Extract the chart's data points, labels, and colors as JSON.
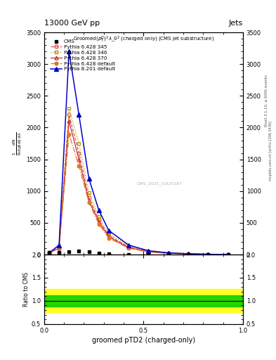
{
  "title_left": "13000 GeV pp",
  "title_right": "Jets",
  "plot_title": "Groomed$(p_{T}^{D})^{2}\\lambda\\_0^{2}$ (charged only) (CMS jet substructure)",
  "xlabel": "groomed pTD2 (charged-only)",
  "watermark": "CMS_2021_I1920187",
  "rivet_label": "Rivet 3.1.10, ≥ 600k events",
  "arxiv_label": "mcplots.cern.ch [arXiv:1306.3436]",
  "cms_x": [
    0.025,
    0.075,
    0.125,
    0.175,
    0.225,
    0.275,
    0.325,
    0.425,
    0.525,
    0.625,
    0.725,
    0.825,
    0.925
  ],
  "cms_y": [
    30,
    35,
    50,
    60,
    40,
    20,
    10,
    5,
    3,
    2,
    1,
    0.5,
    0.2
  ],
  "cms_yerr": [
    4,
    5,
    6,
    7,
    5,
    3,
    2,
    1,
    0.5,
    0.3,
    0.2,
    0.1,
    0.05
  ],
  "p6_345_x": [
    0.025,
    0.075,
    0.125,
    0.175,
    0.225,
    0.275,
    0.325,
    0.425,
    0.525,
    0.625,
    0.725,
    0.825,
    0.925
  ],
  "p6_345_y": [
    30,
    110,
    2200,
    1600,
    900,
    550,
    300,
    120,
    50,
    25,
    12,
    5,
    2
  ],
  "p6_346_x": [
    0.025,
    0.075,
    0.125,
    0.175,
    0.225,
    0.275,
    0.325,
    0.425,
    0.525,
    0.625,
    0.725,
    0.825,
    0.925
  ],
  "p6_346_y": [
    30,
    110,
    2300,
    1750,
    980,
    600,
    330,
    135,
    55,
    27,
    13,
    5.5,
    2.2
  ],
  "p6_370_x": [
    0.025,
    0.075,
    0.125,
    0.175,
    0.225,
    0.275,
    0.325,
    0.425,
    0.525,
    0.625,
    0.725,
    0.825,
    0.925
  ],
  "p6_370_y": [
    25,
    100,
    2100,
    1500,
    850,
    520,
    280,
    110,
    45,
    22,
    11,
    4.5,
    1.8
  ],
  "p6_def_x": [
    0.025,
    0.075,
    0.125,
    0.175,
    0.225,
    0.275,
    0.325,
    0.425,
    0.525,
    0.625,
    0.725,
    0.825,
    0.925
  ],
  "p6_def_y": [
    20,
    100,
    1900,
    1400,
    820,
    480,
    260,
    100,
    40,
    18,
    9,
    3.5,
    1.5
  ],
  "p8_def_x": [
    0.025,
    0.075,
    0.125,
    0.175,
    0.225,
    0.275,
    0.325,
    0.425,
    0.525,
    0.625,
    0.725,
    0.825,
    0.925
  ],
  "p8_def_y": [
    25,
    150,
    3200,
    2200,
    1200,
    700,
    380,
    150,
    60,
    28,
    13,
    5,
    2
  ],
  "colors": {
    "cms": "#000000",
    "p6_345": "#e05555",
    "p6_346": "#b89000",
    "p6_370": "#c83030",
    "p6_def": "#e07820",
    "p8_def": "#0000cc"
  },
  "xlim": [
    0.0,
    1.0
  ],
  "ylim_main": [
    0,
    3500
  ],
  "ylim_ratio": [
    0.5,
    2.0
  ],
  "ratio_yticks": [
    0.5,
    1.0,
    1.5,
    2.0
  ],
  "bg_color": "#ffffff"
}
